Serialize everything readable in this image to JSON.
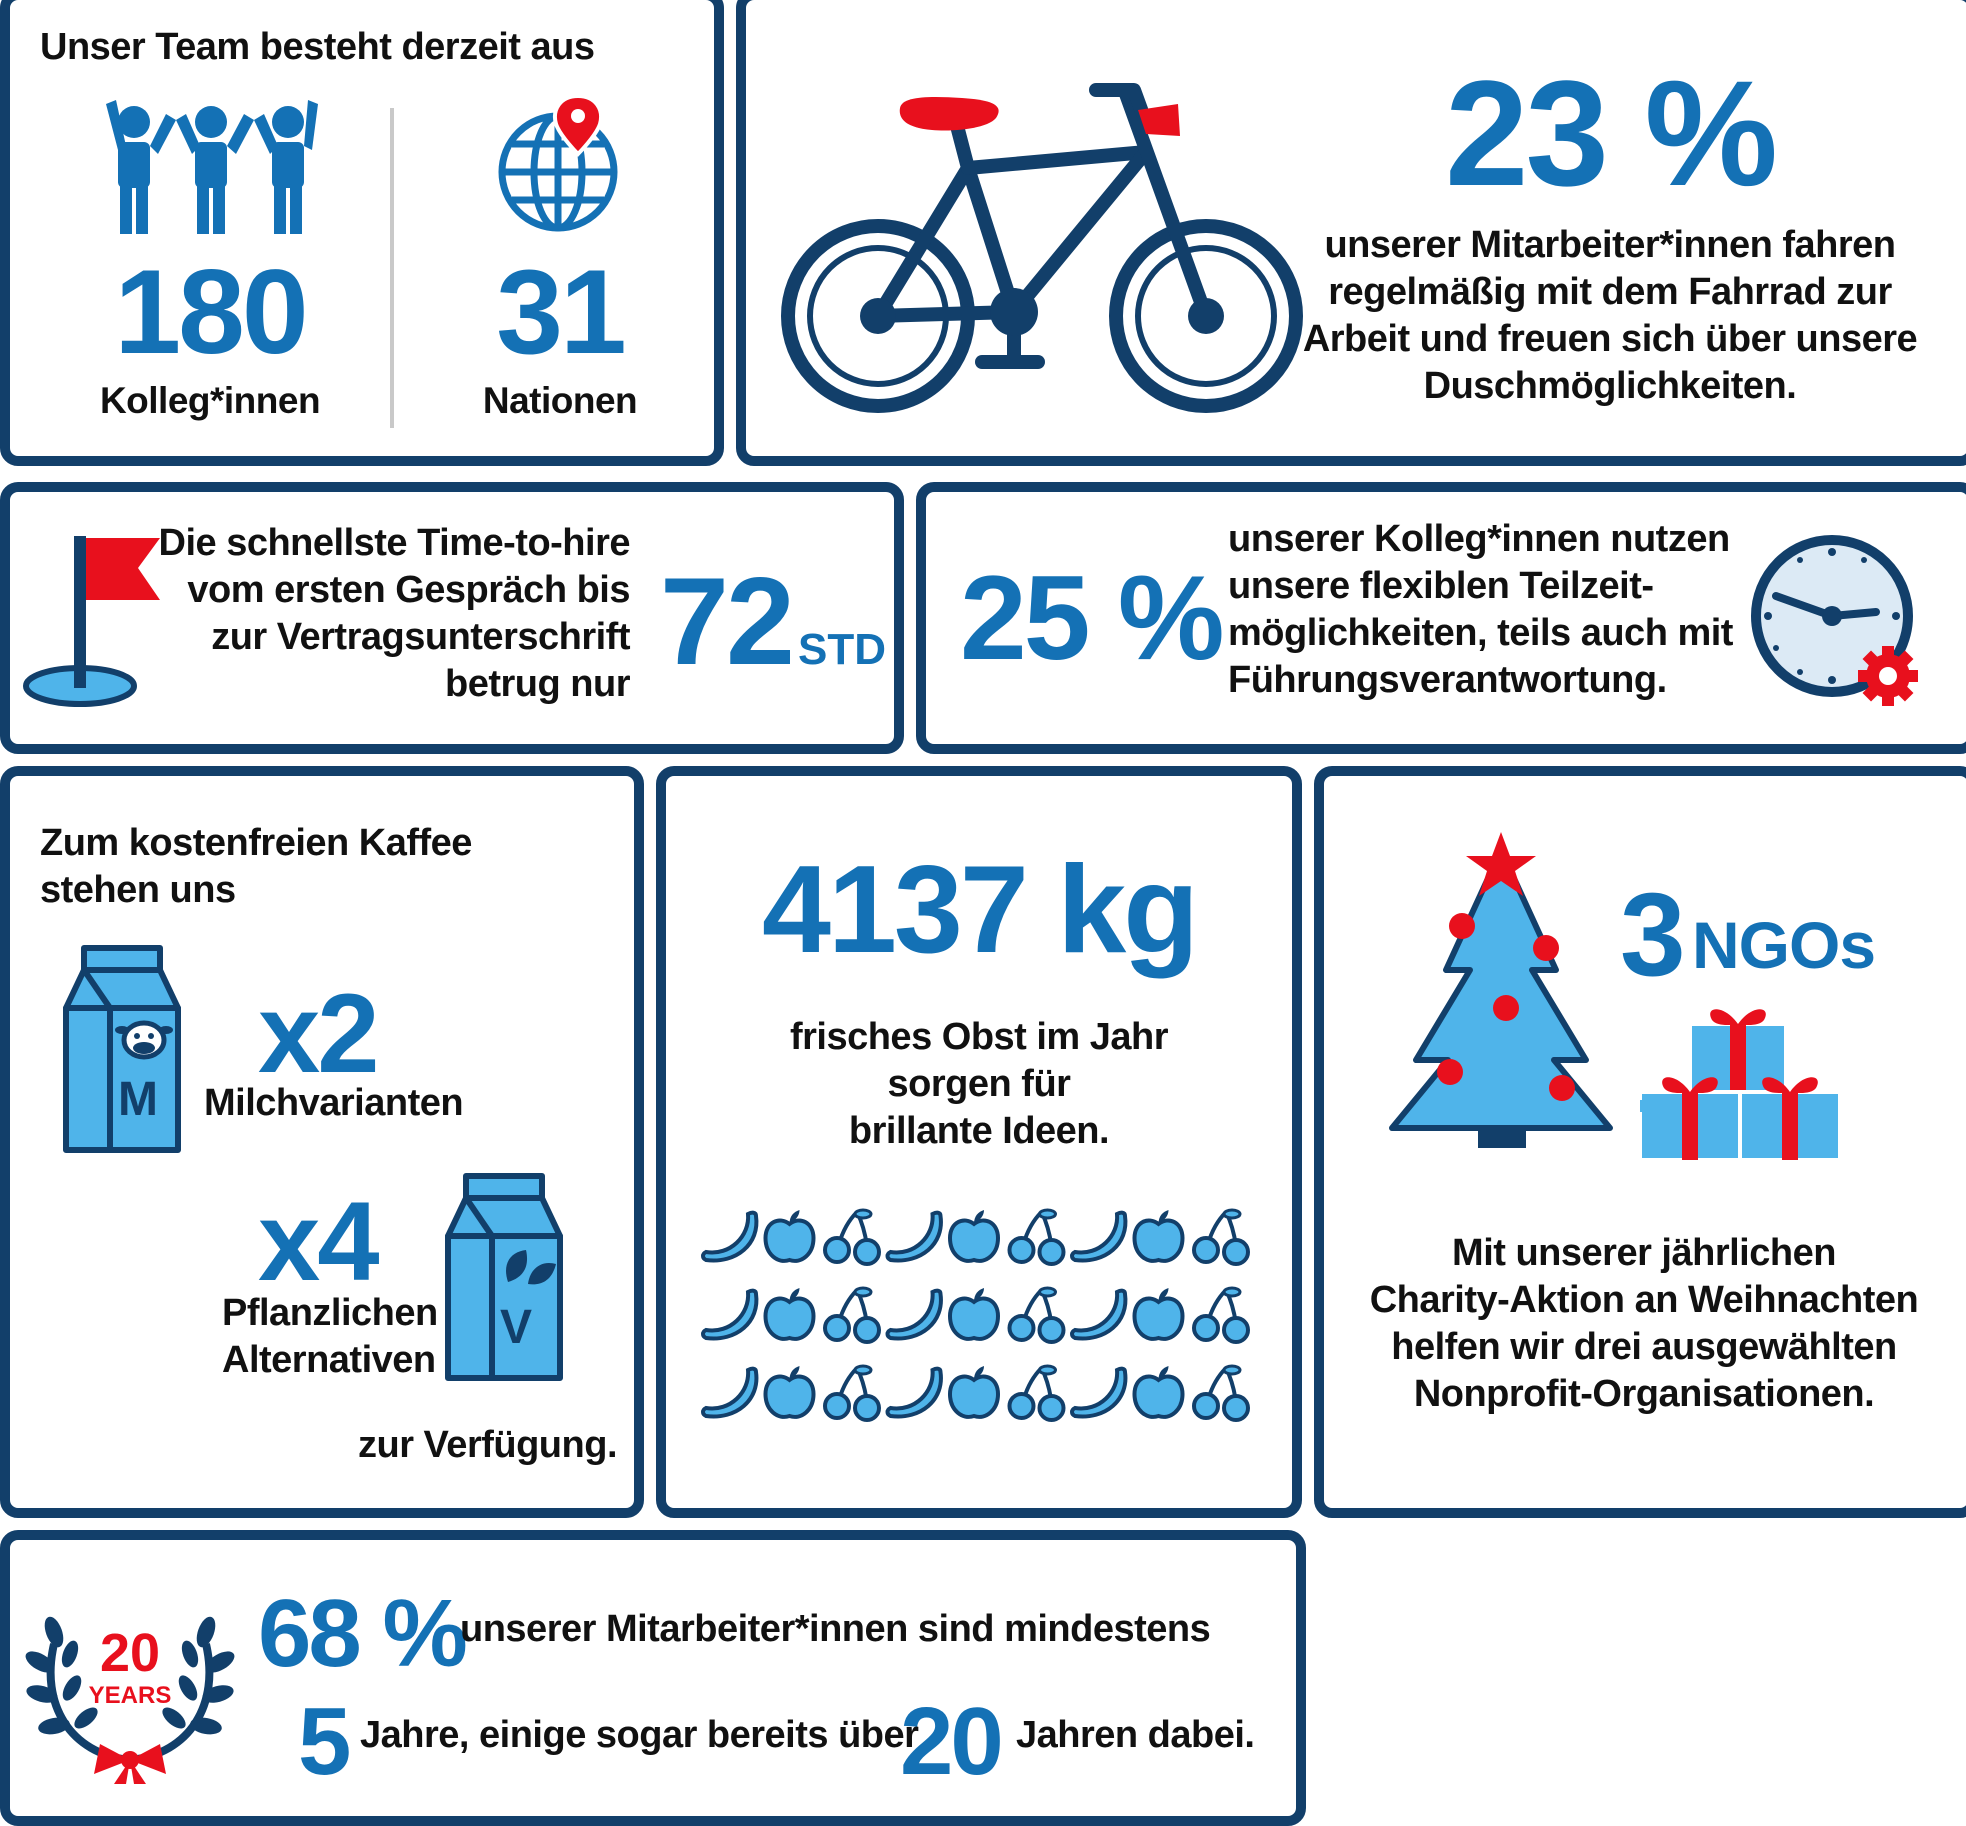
{
  "colors": {
    "navy": "#123f6a",
    "blue": "#1471b5",
    "light": "#4fb4ea",
    "red": "#e8101d"
  },
  "team": {
    "intro": "Unser Team besteht derzeit aus",
    "colleagues_value": "180",
    "colleagues_label": "Kolleg*innen",
    "nations_value": "31",
    "nations_label": "Nationen",
    "icons": [
      "people-group-icon",
      "globe-pin-icon"
    ]
  },
  "bike": {
    "value": "23 %",
    "lines": [
      "unserer Mitarbeiter*innen fahren",
      "regelmäßig mit dem Fahrrad zur",
      "Arbeit und freuen sich über unsere",
      "Duschmöglichkeiten."
    ],
    "icon": "bicycle-icon"
  },
  "hire": {
    "lines": [
      "Die schnellste Time-to-hire",
      "vom ersten Gespräch bis",
      "zur Vertragsunterschrift",
      "betrug nur"
    ],
    "value": "72",
    "unit": "STD",
    "icon": "golf-flag-icon"
  },
  "parttime": {
    "value": "25 %",
    "lines": [
      "unserer Kolleg*innen nutzen",
      "unsere flexiblen Teilzeit-",
      "möglichkeiten, teils auch mit",
      "Führungsverantwortung."
    ],
    "icon": "clock-gear-icon"
  },
  "coffee": {
    "intro_lines": [
      "Zum kostenfreien Kaffee",
      "stehen uns"
    ],
    "milk_count": "x2",
    "milk_label": "Milchvarianten",
    "milk_carton_letter": "M",
    "plant_count": "x4",
    "plant_label_lines": [
      "Pflanzlichen",
      "Alternativen"
    ],
    "plant_carton_letter": "V",
    "outro": "zur Verfügung."
  },
  "fruit": {
    "value": "4137 kg",
    "lines": [
      "frisches Obst im Jahr",
      "sorgen für",
      "brillante Ideen."
    ],
    "grid_pattern": [
      "banana-icon",
      "apple-icon",
      "cherries-icon"
    ],
    "rows": 3,
    "per_row": 9
  },
  "charity": {
    "value": "3",
    "unit": "NGOs",
    "lines": [
      "Mit unserer jährlichen",
      "Charity-Aktion an Weihnachten",
      "helfen wir drei ausgewählten",
      "Nonprofit-Organisationen."
    ],
    "icons": [
      "christmas-tree-icon",
      "gift-boxes-icon"
    ]
  },
  "tenure": {
    "badge_number": "20",
    "badge_word": "YEARS",
    "value": "68 %",
    "line1": "unserer Mitarbeiter*innen sind mindestens",
    "years_min": "5",
    "line2a": "Jahre, einige sogar bereits über",
    "years_max": "20",
    "line2b": "Jahren dabei."
  }
}
